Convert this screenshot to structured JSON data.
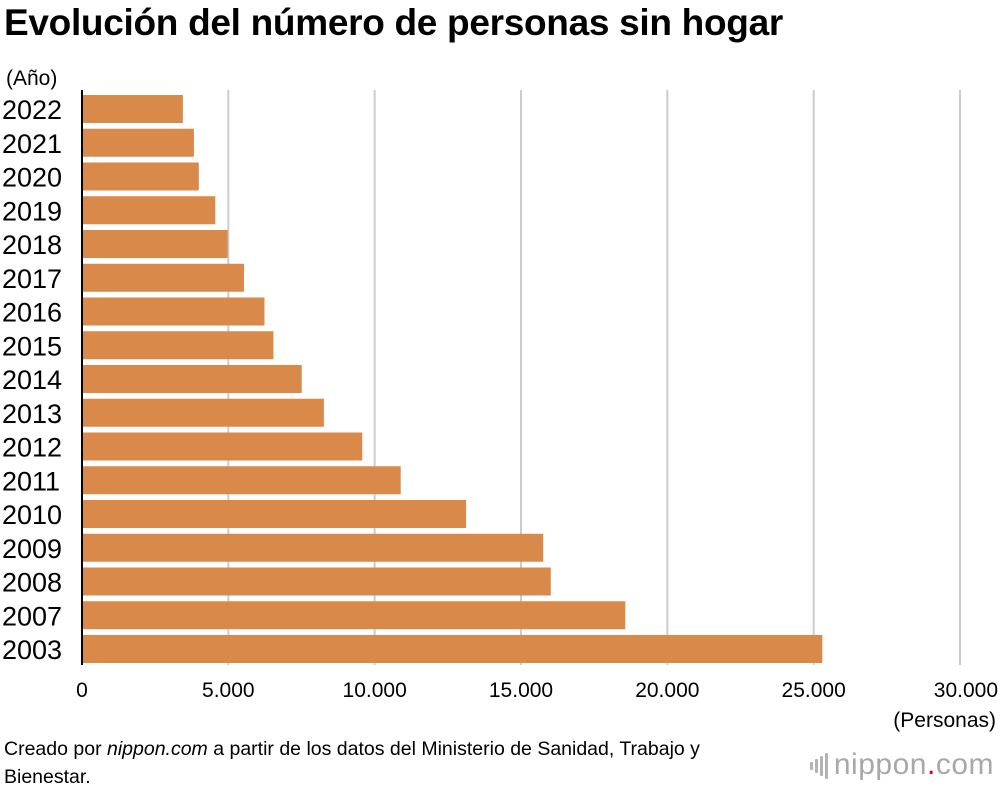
{
  "title": "Evolución del número de personas sin hogar",
  "footer": {
    "prefix": "Creado por ",
    "site": "nippon.com",
    "suffix": " a partir de los datos del Ministerio de Sanidad, Trabajo y Bienestar."
  },
  "logo": {
    "name": "nippon",
    "dot": ".",
    "tld": "com"
  },
  "colors": {
    "bar": "#d9894a",
    "grid": "#cccccc",
    "axis": "#000000"
  },
  "chart_data": {
    "type": "bar",
    "orientation": "horizontal",
    "title": "Evolución del número de personas sin hogar",
    "ylabel": "(Año)",
    "xlabel": "(Personas)",
    "categories": [
      "2022",
      "2021",
      "2020",
      "2019",
      "2018",
      "2017",
      "2016",
      "2015",
      "2014",
      "2013",
      "2012",
      "2011",
      "2010",
      "2009",
      "2008",
      "2007",
      "2003"
    ],
    "values": [
      3448,
      3824,
      3992,
      4555,
      4977,
      5534,
      6235,
      6541,
      7508,
      8265,
      9576,
      10890,
      13124,
      15759,
      16018,
      18564,
      25296
    ],
    "xlim": [
      0,
      30000
    ],
    "xticks": [
      0,
      5000,
      10000,
      15000,
      20000,
      25000,
      30000
    ],
    "xtick_labels": [
      "0",
      "5.000",
      "10.000",
      "15.000",
      "20.000",
      "25.000",
      "30.000"
    ],
    "grid": true
  }
}
